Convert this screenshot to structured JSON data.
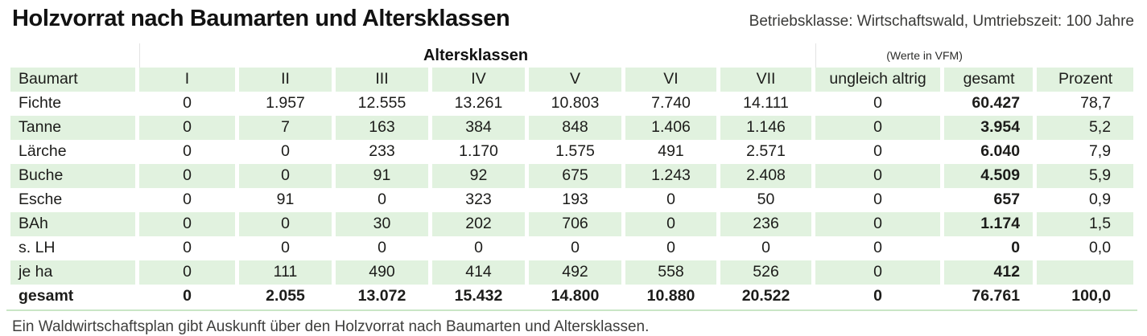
{
  "header": {
    "title": "Holzvorrat nach Baumarten und Altersklassen",
    "subtitle": "Betriebsklasse: Wirtschaftswald, Umtriebszeit: 100 Jahre"
  },
  "table": {
    "group_headers": {
      "altersklassen": "Altersklassen",
      "werte": "(Werte in VFM)"
    },
    "columns": [
      "Baumart",
      "I",
      "II",
      "III",
      "IV",
      "V",
      "VI",
      "VII",
      "ungleich altrig",
      "gesamt",
      "Prozent"
    ],
    "rows": [
      {
        "label": "Fichte",
        "bold": false,
        "values": [
          "0",
          "1.957",
          "12.555",
          "13.261",
          "10.803",
          "7.740",
          "14.111",
          "0",
          "60.427",
          "78,7"
        ]
      },
      {
        "label": "Tanne",
        "bold": false,
        "values": [
          "0",
          "7",
          "163",
          "384",
          "848",
          "1.406",
          "1.146",
          "0",
          "3.954",
          "5,2"
        ]
      },
      {
        "label": "Lärche",
        "bold": false,
        "values": [
          "0",
          "0",
          "233",
          "1.170",
          "1.575",
          "491",
          "2.571",
          "0",
          "6.040",
          "7,9"
        ]
      },
      {
        "label": "Buche",
        "bold": false,
        "values": [
          "0",
          "0",
          "91",
          "92",
          "675",
          "1.243",
          "2.408",
          "0",
          "4.509",
          "5,9"
        ]
      },
      {
        "label": "Esche",
        "bold": false,
        "values": [
          "0",
          "91",
          "0",
          "323",
          "193",
          "0",
          "50",
          "0",
          "657",
          "0,9"
        ]
      },
      {
        "label": "BAh",
        "bold": false,
        "values": [
          "0",
          "0",
          "30",
          "202",
          "706",
          "0",
          "236",
          "0",
          "1.174",
          "1,5"
        ]
      },
      {
        "label": "s. LH",
        "bold": false,
        "values": [
          "0",
          "0",
          "0",
          "0",
          "0",
          "0",
          "0",
          "0",
          "0",
          "0,0"
        ]
      },
      {
        "label": "je ha",
        "bold": false,
        "values": [
          "0",
          "111",
          "490",
          "414",
          "492",
          "558",
          "526",
          "0",
          "412",
          ""
        ]
      },
      {
        "label": "gesamt",
        "bold": true,
        "values": [
          "0",
          "2.055",
          "13.072",
          "15.432",
          "14.800",
          "10.880",
          "20.522",
          "0",
          "76.761",
          "100,0"
        ]
      }
    ]
  },
  "caption": "Ein Waldwirtschaftsplan gibt Auskunft über den Holzvorrat nach Baumarten und Altersklassen.",
  "colors": {
    "row_green": "#e1f2df",
    "bottom_rule_green": "#c9e6c6",
    "text": "#1c1c1a"
  }
}
